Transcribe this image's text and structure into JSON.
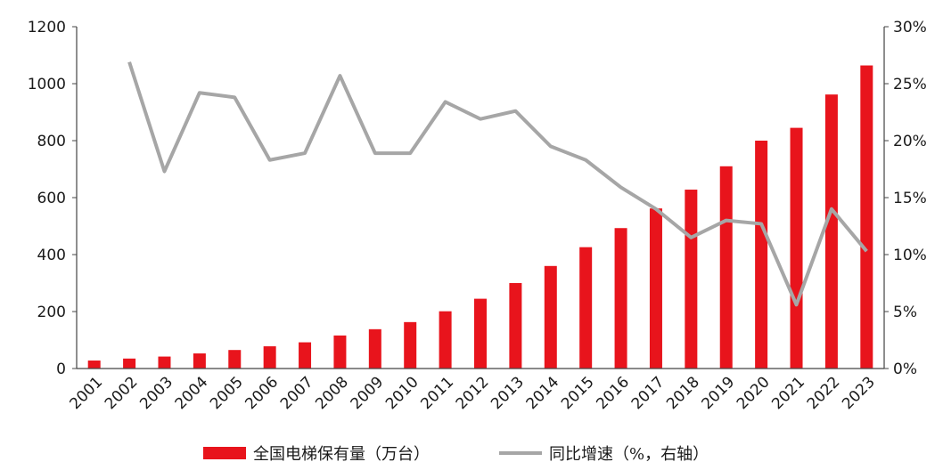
{
  "chart_data": {
    "type": "bar+line",
    "categories": [
      "2001",
      "2002",
      "2003",
      "2004",
      "2005",
      "2006",
      "2007",
      "2008",
      "2009",
      "2010",
      "2011",
      "2012",
      "2013",
      "2014",
      "2015",
      "2016",
      "2017",
      "2018",
      "2019",
      "2020",
      "2021",
      "2022",
      "2023"
    ],
    "series": [
      {
        "name": "全国电梯保有量（万台）",
        "type": "bar",
        "axis": "left",
        "color": "#e8141c",
        "values": [
          28,
          35,
          42,
          53,
          65,
          78,
          92,
          116,
          138,
          163,
          201,
          245,
          300,
          360,
          426,
          493,
          562,
          628,
          710,
          800,
          845,
          962,
          1064
        ]
      },
      {
        "name": "同比增速（%，右轴）",
        "type": "line",
        "axis": "right",
        "color": "#a6a6a6",
        "values": [
          null,
          26.9,
          17.3,
          24.2,
          23.8,
          18.3,
          18.9,
          25.7,
          18.9,
          18.9,
          23.4,
          21.9,
          22.6,
          19.5,
          18.3,
          15.9,
          14.0,
          11.5,
          13.0,
          12.7,
          5.6,
          14.0,
          10.3
        ]
      }
    ],
    "y_left": {
      "ticks": [
        "0",
        "200",
        "400",
        "600",
        "800",
        "1000",
        "1200"
      ],
      "range": [
        0,
        1200
      ]
    },
    "y_right": {
      "ticks": [
        "0%",
        "5%",
        "10%",
        "15%",
        "20%",
        "25%",
        "30%"
      ],
      "range": [
        0,
        30
      ]
    },
    "legend_position": "bottom",
    "grid": false
  }
}
